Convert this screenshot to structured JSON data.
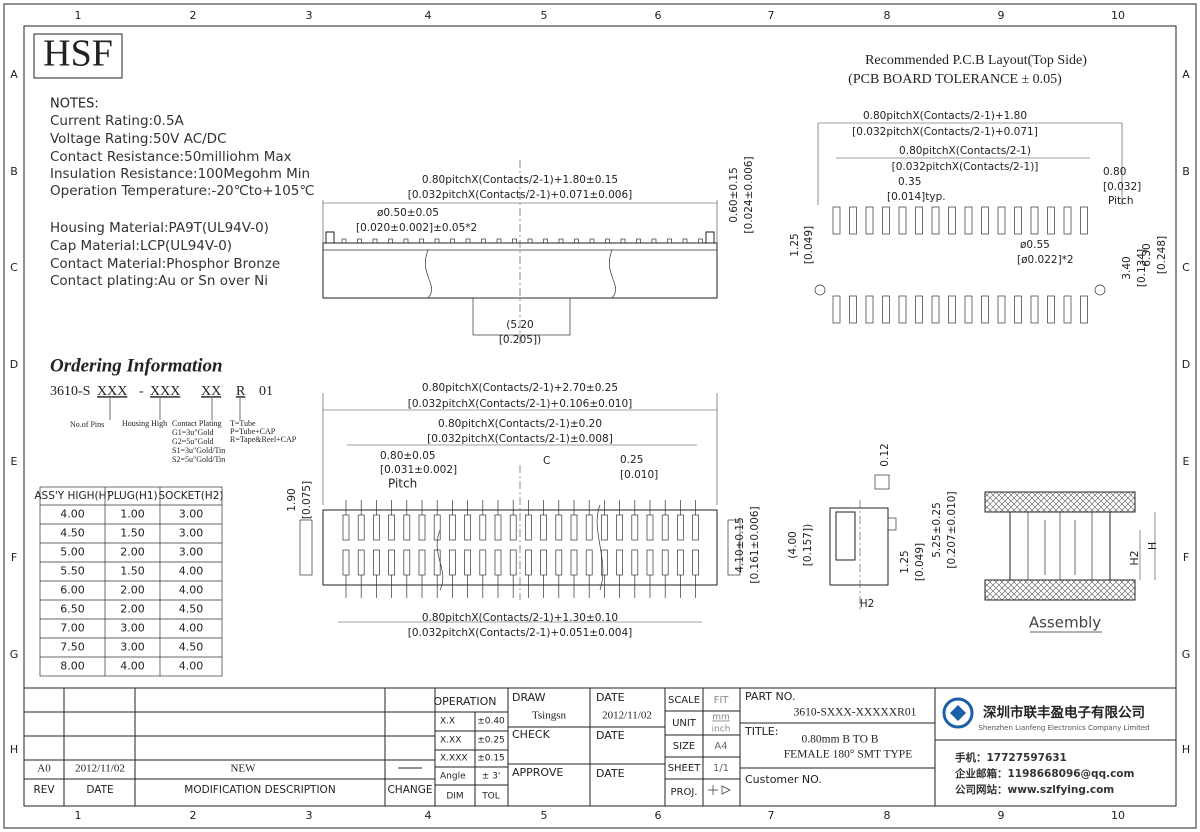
{
  "border": {
    "columns": [
      "1",
      "2",
      "3",
      "4",
      "5",
      "6",
      "7",
      "8",
      "9",
      "10"
    ],
    "rows": [
      "A",
      "B",
      "C",
      "D",
      "E",
      "F",
      "G",
      "H"
    ]
  },
  "logo": "HSF",
  "notes": {
    "title": "NOTES:",
    "lines": [
      "Current Rating:0.5A",
      "Voltage Rating:50V AC/DC",
      "Contact Resistance:50milliohm Max",
      "Insulation Resistance:100Megohm Min",
      "Operation Temperature:-20℃to+105℃",
      "Housing Material:PA9T(UL94V-0)",
      "Cap Material:LCP(UL94V-0)",
      "Contact Material:Phosphor Bronze",
      "Contact plating:Au or Sn over Ni"
    ]
  },
  "ordering": {
    "title": "Ordering Information",
    "code": [
      "3610-S",
      "XXX",
      "-",
      "XXX",
      "XX",
      "R",
      "01"
    ],
    "pins": "No.of Pins",
    "housing": "Housing High",
    "plating": [
      "Contact Plating",
      "G1=3u\"Gold",
      "G2=5u\"Gold",
      "S1=3u\"Gold/Tin",
      "S2=5u\"Gold/Tin"
    ],
    "packing": [
      "T=Tube",
      "P=Tube+CAP",
      "R=Tape&Reel+CAP"
    ]
  },
  "height_table": {
    "header": [
      "ASS'Y HIGH(H)",
      "PLUG(H1)",
      "SOCKET(H2)"
    ],
    "rows": [
      [
        "4.00",
        "1.00",
        "3.00"
      ],
      [
        "4.50",
        "1.50",
        "3.00"
      ],
      [
        "5.00",
        "2.00",
        "3.00"
      ],
      [
        "5.50",
        "1.50",
        "4.00"
      ],
      [
        "6.00",
        "2.00",
        "4.00"
      ],
      [
        "6.50",
        "2.00",
        "4.50"
      ],
      [
        "7.00",
        "3.00",
        "4.00"
      ],
      [
        "7.50",
        "3.00",
        "4.50"
      ],
      [
        "8.00",
        "4.00",
        "4.00"
      ]
    ]
  },
  "pcb_layout": {
    "title": "Recommended P.C.B Layout(Top Side)",
    "subtitle": "(PCB BOARD TOLERANCE ± 0.05)",
    "dims": [
      "0.80pitchX(Contacts/2-1)+1.80",
      "[0.032pitchX(Contacts/2-1)+0.071]",
      "0.80pitchX(Contacts/2-1)",
      "[0.032pitchX(Contacts/2-1)]",
      "0.35",
      "[0.014]typ.",
      "0.80",
      "[0.032]",
      "Pitch",
      "ø0.55",
      "[ø0.022]*2",
      "1.25",
      "[0.049]",
      "3.40",
      "[0.134]",
      "6.30",
      "[0.248]"
    ]
  },
  "side_view": {
    "dims": [
      "0.80pitchX(Contacts/2-1)+1.80±0.15",
      "[0.032pitchX(Contacts/2-1)+0.071±0.006]",
      "ø0.50±0.05",
      "[0.020±0.002]±0.05*2",
      "0.60±0.15",
      "[0.024±0.006]",
      "(5.20",
      "[0.205])"
    ]
  },
  "front_view": {
    "dims": [
      "0.80pitchX(Contacts/2-1)+2.70±0.25",
      "[0.032pitchX(Contacts/2-1)+0.106±0.010]",
      "0.80pitchX(Contacts/2-1)±0.20",
      "[0.032pitchX(Contacts/2-1)±0.008]",
      "0.80±0.05",
      "[0.031±0.002]",
      "Pitch",
      "0.25",
      "[0.010]",
      "C",
      "1.90",
      "[0.075]",
      "4.10±0.15",
      "[0.161±0.006]",
      "0.80pitchX(Contacts/2-1)+1.30±0.10",
      "[0.032pitchX(Contacts/2-1)+0.051±0.004]"
    ]
  },
  "end_view": {
    "dims": [
      "0.12",
      "(4.00",
      "[0.157])",
      "1.25",
      "[0.049]",
      "5.25±0.25",
      "[0.207±0.010]",
      "H2"
    ]
  },
  "assembly": {
    "label": "Assembly",
    "h2": "H2",
    "h": "H"
  },
  "title_block": {
    "revision": {
      "headers": [
        "REV",
        "DATE",
        "MODIFICATION DESCRIPTION",
        "CHANGE"
      ],
      "rev": "A0",
      "date": "2012/11/02",
      "description": "NEW"
    },
    "operation": "OPERATION",
    "tolerances": [
      [
        "X.X",
        "±0.40"
      ],
      [
        "X.XX",
        "±0.25"
      ],
      [
        "X.XXX",
        "±0.15"
      ],
      [
        "Angle",
        "± 3'"
      ]
    ],
    "dim": "DIM",
    "tol": "TOL",
    "draw": "DRAW",
    "drawer": "Tsingsn",
    "date_label": "DATE",
    "date": "2012/11/02",
    "check": "CHECK",
    "approve": "APPROVE",
    "scale": "SCALE",
    "scale_value": "FIT",
    "unit": "UNIT",
    "unit_values": [
      "mm",
      "inch"
    ],
    "size": "SIZE",
    "size_value": "A4",
    "sheet": "SHEET",
    "sheet_value": "1/1",
    "proj": "PROJ.",
    "part_no_label": "PART NO.",
    "part_no": "3610-SXXX-XXXXXR01",
    "title_label": "TITLE:",
    "title": [
      "0.80mm B TO B",
      "FEMALE 180° SMT TYPE"
    ],
    "customer": "Customer NO.",
    "company": {
      "name": "深圳市联丰盈电子有限公司",
      "name_en": "Shenzhen Lianfeng Electronics Company Limited",
      "phone": "手机：17727597631",
      "email": "企业邮箱：1198668096@qq.com",
      "web": "公司网站：www.szlfying.com"
    }
  }
}
